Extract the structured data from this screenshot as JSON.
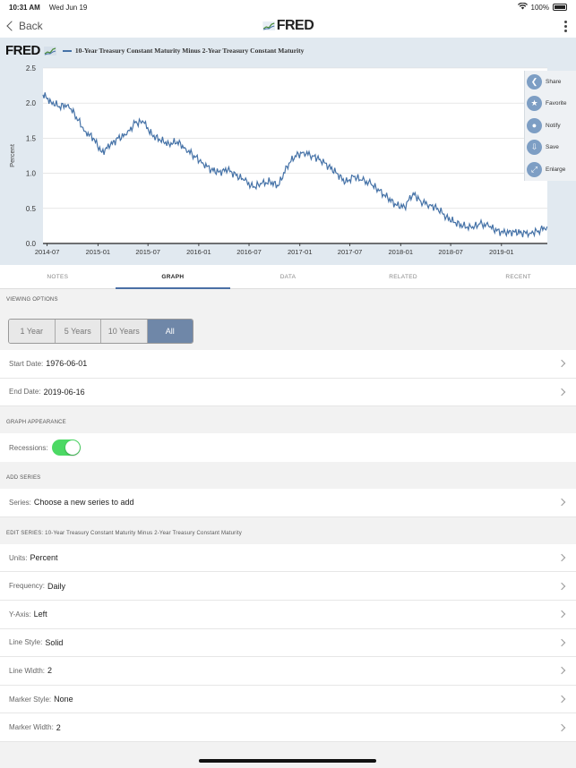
{
  "status": {
    "time": "10:31 AM",
    "date": "Wed Jun 19",
    "battery": "100%"
  },
  "navbar": {
    "back_label": "Back",
    "logo_text": "FRED"
  },
  "chart_header": {
    "brand": "FRED",
    "title": "10-Year Treasury Constant Maturity Minus 2-Year Treasury Constant Maturity"
  },
  "chart_data": {
    "type": "line",
    "title": "10-Year Treasury Constant Maturity Minus 2-Year Treasury Constant Maturity",
    "ylabel": "Percent",
    "xlabel": "",
    "ylim": [
      0,
      2.5
    ],
    "yticks": [
      "0.0",
      "0.5",
      "1.0",
      "1.5",
      "2.0",
      "2.5"
    ],
    "xticks": [
      "2014-07",
      "2015-01",
      "2015-07",
      "2016-01",
      "2016-07",
      "2017-01",
      "2017-07",
      "2018-01",
      "2018-07",
      "2019-01"
    ],
    "grid": true,
    "series": [
      {
        "color": "#4572a7",
        "x": [
          "2014-06-16",
          "2014-07-15",
          "2014-08-15",
          "2014-09-15",
          "2014-10-15",
          "2014-11-15",
          "2014-12-15",
          "2015-01-15",
          "2015-02-15",
          "2015-03-15",
          "2015-04-15",
          "2015-05-15",
          "2015-06-15",
          "2015-07-15",
          "2015-08-15",
          "2015-09-15",
          "2015-10-15",
          "2015-11-15",
          "2015-12-15",
          "2016-01-15",
          "2016-02-15",
          "2016-03-15",
          "2016-04-15",
          "2016-05-15",
          "2016-06-15",
          "2016-07-15",
          "2016-08-15",
          "2016-09-15",
          "2016-10-15",
          "2016-11-15",
          "2016-12-15",
          "2017-01-15",
          "2017-02-15",
          "2017-03-15",
          "2017-04-15",
          "2017-05-15",
          "2017-06-15",
          "2017-07-15",
          "2017-08-15",
          "2017-09-15",
          "2017-10-15",
          "2017-11-15",
          "2017-12-15",
          "2018-01-15",
          "2018-02-15",
          "2018-03-15",
          "2018-04-15",
          "2018-05-15",
          "2018-06-15",
          "2018-07-15",
          "2018-08-15",
          "2018-09-15",
          "2018-10-15",
          "2018-11-15",
          "2018-12-15",
          "2019-01-15",
          "2019-02-15",
          "2019-03-15",
          "2019-04-15",
          "2019-05-15",
          "2019-06-15"
        ],
        "y": [
          2.12,
          2.02,
          1.95,
          1.98,
          1.8,
          1.6,
          1.5,
          1.3,
          1.4,
          1.5,
          1.55,
          1.72,
          1.73,
          1.55,
          1.47,
          1.42,
          1.45,
          1.35,
          1.25,
          1.15,
          1.05,
          1.02,
          1.05,
          0.97,
          0.9,
          0.8,
          0.85,
          0.88,
          0.82,
          1.1,
          1.25,
          1.3,
          1.25,
          1.2,
          1.1,
          1.0,
          0.87,
          0.95,
          0.9,
          0.85,
          0.75,
          0.65,
          0.55,
          0.52,
          0.72,
          0.6,
          0.55,
          0.5,
          0.38,
          0.3,
          0.25,
          0.22,
          0.28,
          0.25,
          0.18,
          0.15,
          0.17,
          0.15,
          0.15,
          0.18,
          0.24
        ]
      }
    ]
  },
  "side_menu": {
    "items": [
      {
        "label": "Share"
      },
      {
        "label": "Favorite"
      },
      {
        "label": "Notify"
      },
      {
        "label": "Save"
      },
      {
        "label": "Enlarge"
      }
    ]
  },
  "tabs": [
    {
      "label": "NOTES"
    },
    {
      "label": "GRAPH"
    },
    {
      "label": "DATA"
    },
    {
      "label": "RELATED"
    },
    {
      "label": "RECENT"
    }
  ],
  "viewing_options": {
    "heading": "VIEWING OPTIONS",
    "ranges": [
      "1 Year",
      "5 Years",
      "10 Years",
      "All"
    ],
    "start_date": {
      "label": "Start Date:",
      "value": "1976-06-01"
    },
    "end_date": {
      "label": "End Date:",
      "value": "2019-06-16"
    }
  },
  "graph_appearance": {
    "heading": "GRAPH APPEARANCE",
    "recessions_label": "Recessions:"
  },
  "add_series": {
    "heading": "ADD SERIES",
    "label": "Series:",
    "value": "Choose a new series to add"
  },
  "edit_series": {
    "heading": "EDIT SERIES: 10-Year Treasury Constant Maturity Minus 2-Year Treasury Constant Maturity",
    "rows": [
      {
        "label": "Units:",
        "value": "Percent"
      },
      {
        "label": "Frequency:",
        "value": "Daily"
      },
      {
        "label": "Y-Axis:",
        "value": "Left"
      },
      {
        "label": "Line Style:",
        "value": "Solid"
      },
      {
        "label": "Line Width:",
        "value": "2"
      },
      {
        "label": "Marker Style:",
        "value": "None"
      },
      {
        "label": "Marker Width:",
        "value": "2"
      }
    ]
  }
}
